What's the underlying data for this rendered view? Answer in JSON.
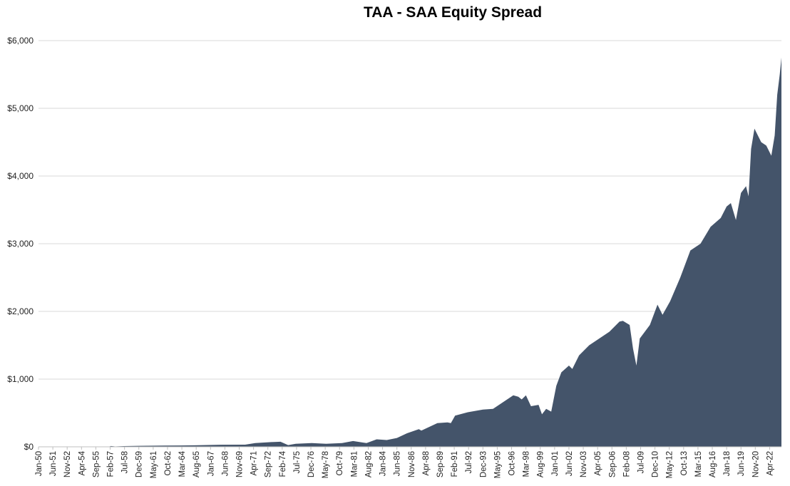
{
  "chart_data": {
    "type": "area",
    "title": "TAA - SAA Equity Spread",
    "xlabel": "",
    "ylabel": "",
    "ylim": [
      0,
      6000
    ],
    "grid": true,
    "legend": "none",
    "colors": {
      "fill": "#44546A",
      "grid": "#D9D9D9",
      "axis": "#BFBFBF"
    },
    "y_ticks": [
      "$0",
      "$1,000",
      "$2,000",
      "$3,000",
      "$4,000",
      "$5,000",
      "$6,000"
    ],
    "y_tick_values": [
      0,
      1000,
      2000,
      3000,
      4000,
      5000,
      6000
    ],
    "x_tick_labels": [
      "Jan-50",
      "Jun-51",
      "Nov-52",
      "Apr-54",
      "Sep-55",
      "Feb-57",
      "Jul-58",
      "Dec-59",
      "May-61",
      "Oct-62",
      "Mar-64",
      "Aug-65",
      "Jan-67",
      "Jun-68",
      "Nov-69",
      "Apr-71",
      "Sep-72",
      "Feb-74",
      "Jul-75",
      "Dec-76",
      "May-78",
      "Oct-79",
      "Mar-81",
      "Aug-82",
      "Jan-84",
      "Jun-85",
      "Nov-86",
      "Apr-88",
      "Sep-89",
      "Feb-91",
      "Jul-92",
      "Dec-93",
      "May-95",
      "Oct-96",
      "Mar-98",
      "Aug-99",
      "Jan-01",
      "Jun-02",
      "Nov-03",
      "Apr-05",
      "Sep-06",
      "Feb-08",
      "Jul-09",
      "Dec-10",
      "May-12",
      "Oct-13",
      "Mar-15",
      "Aug-16",
      "Jan-18",
      "Jun-19",
      "Nov-20",
      "Apr-22"
    ],
    "x_range": [
      "1950-01",
      "2023-06"
    ],
    "series": [
      {
        "points": [
          [
            "1950-01",
            0
          ],
          [
            "1956-12",
            0
          ],
          [
            "1957-03",
            12
          ],
          [
            "1957-08",
            5
          ],
          [
            "1958-06",
            10
          ],
          [
            "1960-01",
            14
          ],
          [
            "1962-06",
            18
          ],
          [
            "1965-06",
            22
          ],
          [
            "1968-01",
            30
          ],
          [
            "1970-06",
            32
          ],
          [
            "1971-06",
            55
          ],
          [
            "1973-01",
            70
          ],
          [
            "1973-12",
            75
          ],
          [
            "1974-09",
            25
          ],
          [
            "1975-06",
            45
          ],
          [
            "1977-01",
            55
          ],
          [
            "1978-06",
            45
          ],
          [
            "1980-01",
            55
          ],
          [
            "1981-02",
            85
          ],
          [
            "1982-06",
            55
          ],
          [
            "1983-06",
            110
          ],
          [
            "1984-06",
            100
          ],
          [
            "1985-06",
            130
          ],
          [
            "1986-06",
            200
          ],
          [
            "1987-08",
            260
          ],
          [
            "1987-11",
            240
          ],
          [
            "1989-06",
            350
          ],
          [
            "1990-06",
            360
          ],
          [
            "1990-10",
            350
          ],
          [
            "1991-03",
            460
          ],
          [
            "1992-06",
            510
          ],
          [
            "1993-12",
            550
          ],
          [
            "1994-12",
            560
          ],
          [
            "1995-12",
            660
          ],
          [
            "1996-12",
            760
          ],
          [
            "1997-06",
            740
          ],
          [
            "1997-10",
            700
          ],
          [
            "1998-03",
            760
          ],
          [
            "1998-09",
            600
          ],
          [
            "1999-06",
            620
          ],
          [
            "1999-10",
            480
          ],
          [
            "2000-03",
            560
          ],
          [
            "2000-09",
            520
          ],
          [
            "2001-03",
            900
          ],
          [
            "2001-09",
            1100
          ],
          [
            "2002-06",
            1200
          ],
          [
            "2002-10",
            1150
          ],
          [
            "2003-06",
            1350
          ],
          [
            "2004-06",
            1500
          ],
          [
            "2005-06",
            1600
          ],
          [
            "2006-06",
            1700
          ],
          [
            "2007-06",
            1850
          ],
          [
            "2007-10",
            1860
          ],
          [
            "2008-06",
            1800
          ],
          [
            "2008-10",
            1450
          ],
          [
            "2009-02",
            1200
          ],
          [
            "2009-06",
            1600
          ],
          [
            "2010-06",
            1800
          ],
          [
            "2011-03",
            2100
          ],
          [
            "2011-09",
            1950
          ],
          [
            "2012-06",
            2150
          ],
          [
            "2013-06",
            2500
          ],
          [
            "2014-06",
            2900
          ],
          [
            "2015-06",
            3000
          ],
          [
            "2016-06",
            3250
          ],
          [
            "2017-06",
            3380
          ],
          [
            "2018-01",
            3550
          ],
          [
            "2018-06",
            3600
          ],
          [
            "2018-12",
            3350
          ],
          [
            "2019-06",
            3750
          ],
          [
            "2019-12",
            3850
          ],
          [
            "2020-03",
            3700
          ],
          [
            "2020-06",
            4400
          ],
          [
            "2020-10",
            4700
          ],
          [
            "2021-06",
            4500
          ],
          [
            "2021-12",
            4450
          ],
          [
            "2022-06",
            4300
          ],
          [
            "2022-10",
            4600
          ],
          [
            "2023-01",
            5200
          ],
          [
            "2023-04",
            5500
          ],
          [
            "2023-06",
            5750
          ]
        ]
      }
    ]
  }
}
